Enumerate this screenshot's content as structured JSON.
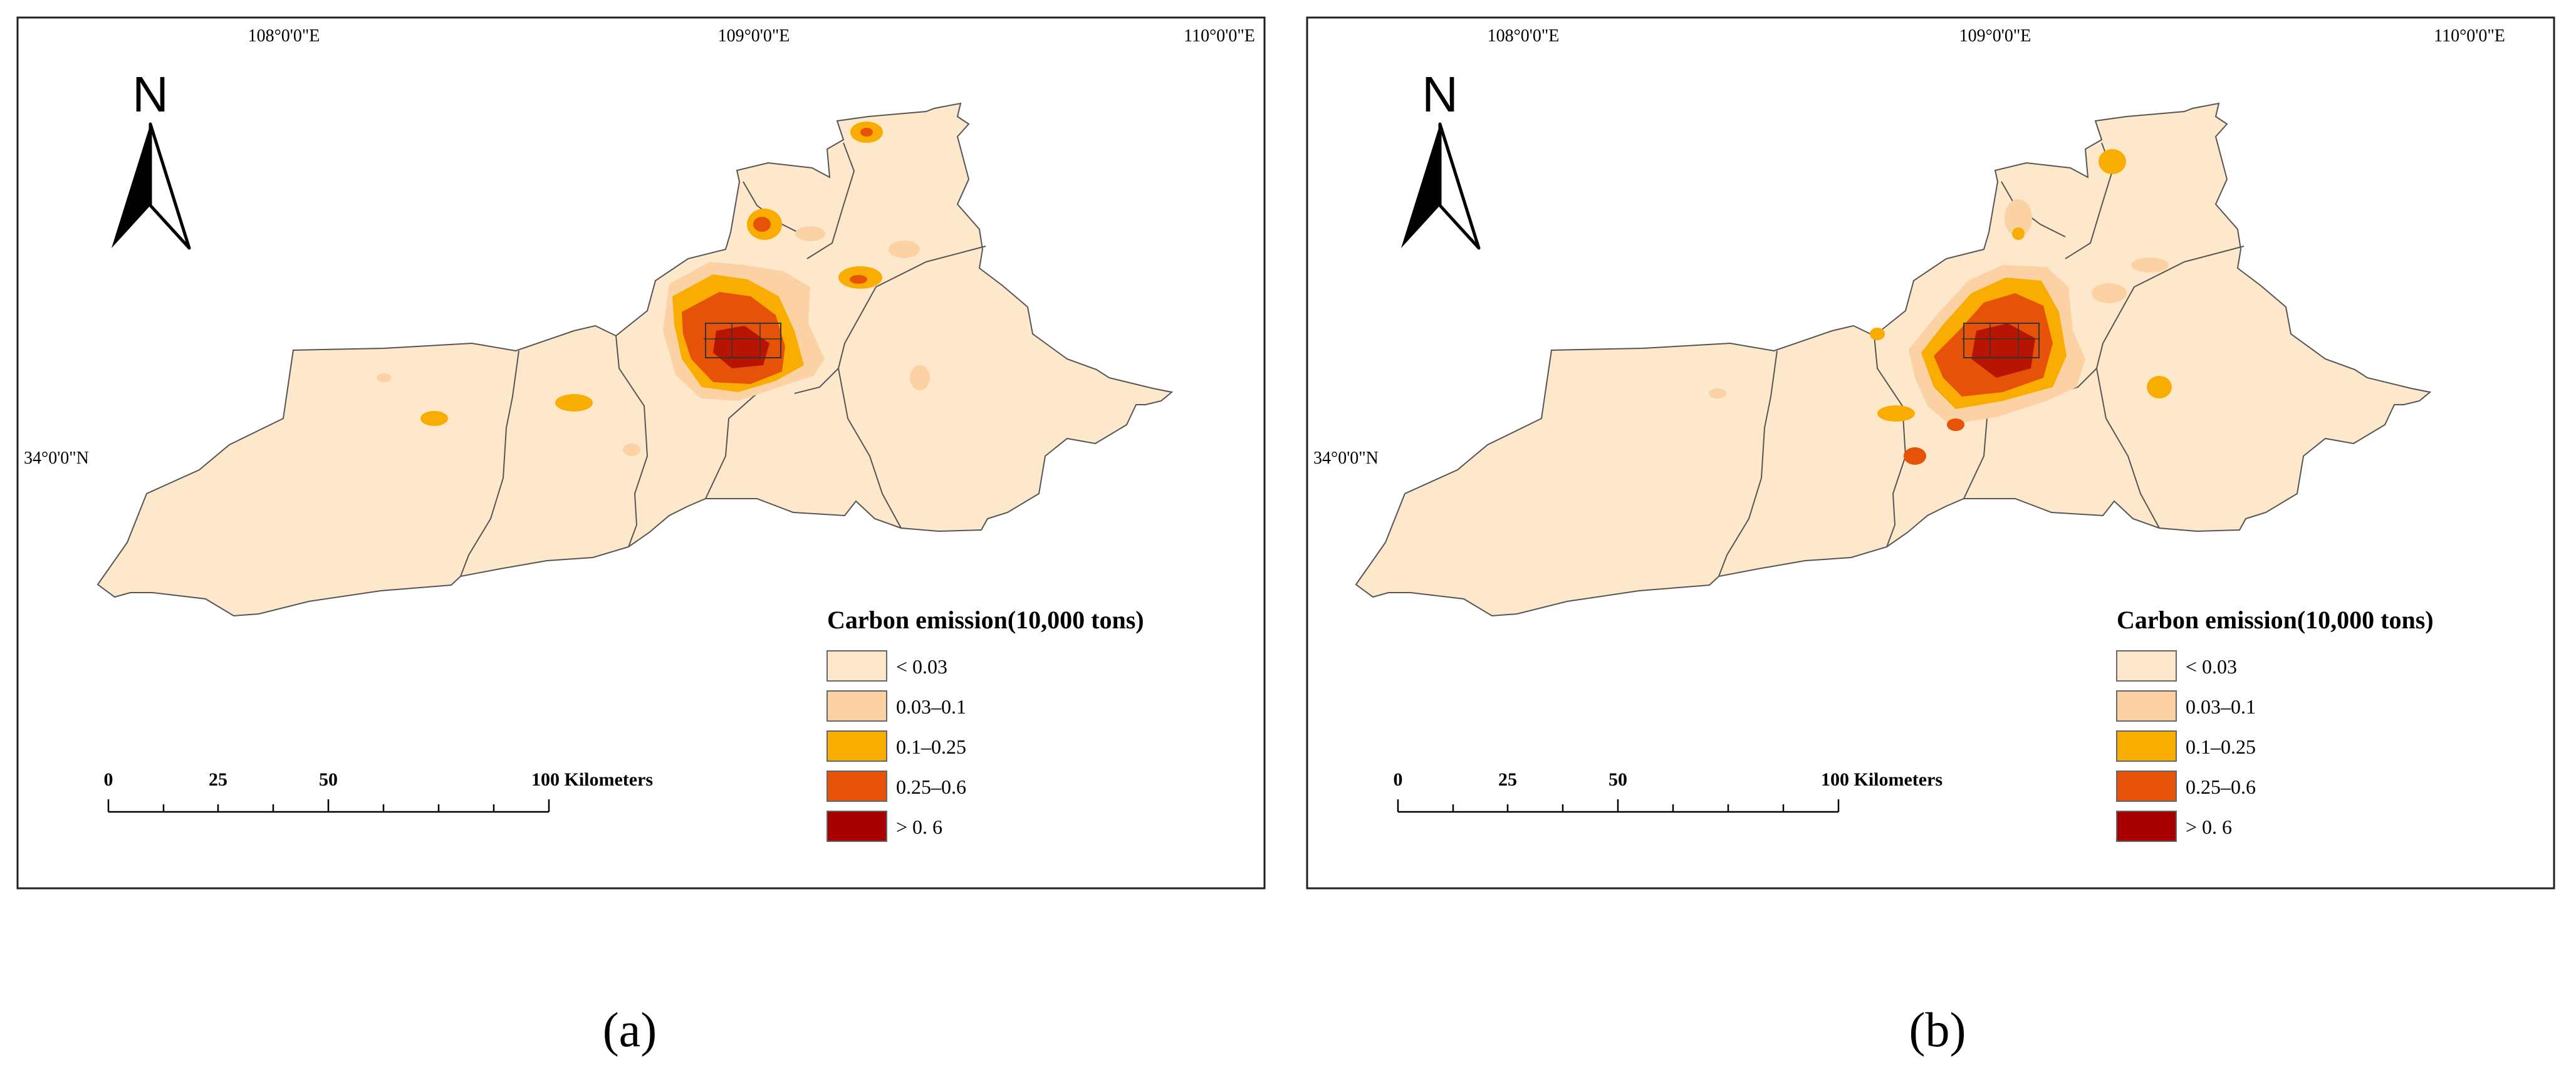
{
  "panels": [
    {
      "caption": "(a)",
      "north_label": "N",
      "longitude_labels": [
        "108°0'0\"E",
        "109°0'0\"E",
        "110°0'0\"E"
      ],
      "latitude_label": "34°0'0\"N",
      "scale_bar": {
        "ticks": [
          "0",
          "25",
          "50",
          "100 Kilometers"
        ]
      },
      "legend": {
        "title": "Carbon emission(10,000 tons)",
        "items": [
          {
            "label": "< 0.03",
            "color": "#fde8cb"
          },
          {
            "label": "0.03–0.1",
            "color": "#fcd2a4"
          },
          {
            "label": "0.1–0.25",
            "color": "#f9ad00"
          },
          {
            "label": "0.25–0.6",
            "color": "#e65208"
          },
          {
            "label": "> 0. 6",
            "color": "#a80000"
          }
        ]
      }
    },
    {
      "caption": "(b)",
      "north_label": "N",
      "longitude_labels": [
        "108°0'0\"E",
        "109°0'0\"E",
        "110°0'0\"E"
      ],
      "latitude_label": "34°0'0\"N",
      "scale_bar": {
        "ticks": [
          "0",
          "25",
          "50",
          "100 Kilometers"
        ]
      },
      "legend": {
        "title": "Carbon emission(10,000 tons)",
        "items": [
          {
            "label": "< 0.03",
            "color": "#fde8cb"
          },
          {
            "label": "0.03–0.1",
            "color": "#fcd2a4"
          },
          {
            "label": "0.1–0.25",
            "color": "#f9ad00"
          },
          {
            "label": "0.25–0.6",
            "color": "#e65208"
          },
          {
            "label": "> 0. 6",
            "color": "#a80000"
          }
        ]
      }
    }
  ]
}
